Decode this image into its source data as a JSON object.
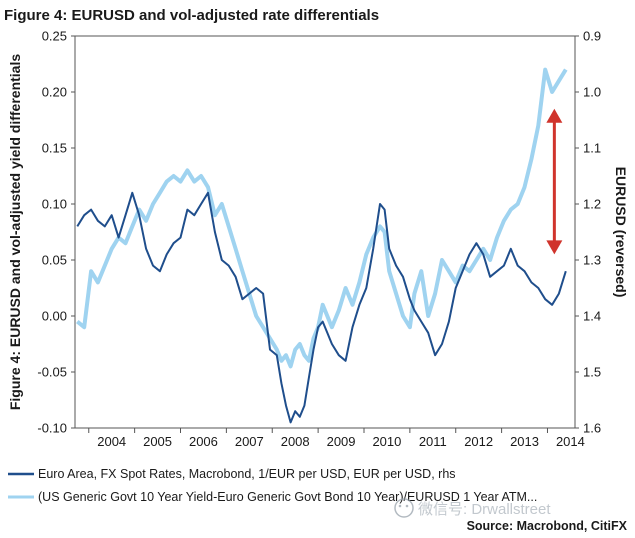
{
  "chart_data": {
    "type": "line",
    "title": "Figure 4: EURUSD and vol-adjusted rate differentials",
    "ylabel_left": "Figure 4: EURUSD and vol-adjusted yield differentials",
    "ylabel_right": "EURUSD (reversed)",
    "ylim_left": [
      -0.1,
      0.25
    ],
    "yticks_left": [
      "0.25",
      "0.20",
      "0.15",
      "0.10",
      "0.05",
      "0.00",
      "-0.05",
      "-0.10"
    ],
    "ylim_right": [
      1.6,
      0.9
    ],
    "yticks_right": [
      "0.9",
      "1.0",
      "1.1",
      "1.2",
      "1.3",
      "1.4",
      "1.5",
      "1.6"
    ],
    "x_categories": [
      "2004",
      "2005",
      "2006",
      "2007",
      "2008",
      "2009",
      "2010",
      "2011",
      "2012",
      "2013",
      "2014"
    ],
    "series": [
      {
        "name": "Euro Area, FX Spot Rates, Macrobond, 1/EUR per USD, EUR per USD, rhs",
        "axis": "right",
        "color": "#1f4e8c",
        "x": [
          2003.75,
          2003.9,
          2004.05,
          2004.2,
          2004.35,
          2004.5,
          2004.65,
          2004.8,
          2004.95,
          2005.1,
          2005.25,
          2005.4,
          2005.55,
          2005.7,
          2005.85,
          2006.0,
          2006.15,
          2006.3,
          2006.45,
          2006.6,
          2006.75,
          2006.9,
          2007.05,
          2007.2,
          2007.35,
          2007.5,
          2007.65,
          2007.8,
          2007.95,
          2008.1,
          2008.2,
          2008.3,
          2008.4,
          2008.5,
          2008.6,
          2008.7,
          2008.8,
          2008.9,
          2009.0,
          2009.1,
          2009.2,
          2009.3,
          2009.45,
          2009.6,
          2009.75,
          2009.9,
          2010.05,
          2010.2,
          2010.35,
          2010.45,
          2010.55,
          2010.7,
          2010.85,
          2011.0,
          2011.1,
          2011.25,
          2011.4,
          2011.55,
          2011.7,
          2011.85,
          2012.0,
          2012.15,
          2012.3,
          2012.45,
          2012.6,
          2012.75,
          2012.9,
          2013.05,
          2013.2,
          2013.35,
          2013.5,
          2013.65,
          2013.8,
          2013.95,
          2014.1,
          2014.25,
          2014.4
        ],
        "values": [
          1.24,
          1.22,
          1.21,
          1.23,
          1.24,
          1.22,
          1.26,
          1.22,
          1.18,
          1.22,
          1.28,
          1.31,
          1.32,
          1.29,
          1.27,
          1.26,
          1.21,
          1.22,
          1.2,
          1.18,
          1.25,
          1.3,
          1.31,
          1.33,
          1.37,
          1.36,
          1.35,
          1.36,
          1.46,
          1.47,
          1.52,
          1.56,
          1.59,
          1.57,
          1.58,
          1.56,
          1.51,
          1.46,
          1.42,
          1.41,
          1.43,
          1.45,
          1.47,
          1.48,
          1.42,
          1.38,
          1.35,
          1.28,
          1.2,
          1.21,
          1.28,
          1.31,
          1.33,
          1.37,
          1.39,
          1.41,
          1.43,
          1.47,
          1.45,
          1.41,
          1.35,
          1.32,
          1.29,
          1.27,
          1.29,
          1.33,
          1.32,
          1.31,
          1.28,
          1.31,
          1.32,
          1.34,
          1.35,
          1.37,
          1.38,
          1.36,
          1.32
        ]
      },
      {
        "name": "(US Generic Govt 10 Year Yield-Euro Generic Govt Bond 10 Year)/EURUSD 1 Year ATM...",
        "axis": "left",
        "color": "#9fd3f0",
        "x": [
          2003.75,
          2003.9,
          2004.05,
          2004.2,
          2004.35,
          2004.5,
          2004.65,
          2004.8,
          2004.95,
          2005.1,
          2005.25,
          2005.4,
          2005.55,
          2005.7,
          2005.85,
          2006.0,
          2006.15,
          2006.3,
          2006.45,
          2006.6,
          2006.75,
          2006.9,
          2007.05,
          2007.2,
          2007.35,
          2007.5,
          2007.65,
          2007.8,
          2007.95,
          2008.1,
          2008.2,
          2008.3,
          2008.4,
          2008.5,
          2008.6,
          2008.7,
          2008.8,
          2008.9,
          2009.0,
          2009.1,
          2009.2,
          2009.3,
          2009.45,
          2009.6,
          2009.75,
          2009.9,
          2010.05,
          2010.2,
          2010.35,
          2010.45,
          2010.55,
          2010.7,
          2010.85,
          2011.0,
          2011.1,
          2011.25,
          2011.4,
          2011.55,
          2011.7,
          2011.85,
          2012.0,
          2012.15,
          2012.3,
          2012.45,
          2012.6,
          2012.75,
          2012.9,
          2013.05,
          2013.2,
          2013.35,
          2013.5,
          2013.65,
          2013.8,
          2013.95,
          2014.1,
          2014.25,
          2014.4
        ],
        "values": [
          -0.005,
          -0.01,
          0.04,
          0.03,
          0.045,
          0.06,
          0.07,
          0.065,
          0.08,
          0.095,
          0.085,
          0.1,
          0.11,
          0.12,
          0.125,
          0.12,
          0.13,
          0.12,
          0.125,
          0.115,
          0.09,
          0.1,
          0.08,
          0.06,
          0.04,
          0.02,
          0.0,
          -0.01,
          -0.02,
          -0.03,
          -0.04,
          -0.035,
          -0.045,
          -0.03,
          -0.025,
          -0.035,
          -0.04,
          -0.02,
          -0.01,
          0.01,
          0.0,
          -0.01,
          0.005,
          0.025,
          0.01,
          0.03,
          0.055,
          0.07,
          0.08,
          0.075,
          0.04,
          0.02,
          0.0,
          -0.01,
          0.02,
          0.04,
          0.0,
          0.02,
          0.05,
          0.04,
          0.03,
          0.045,
          0.04,
          0.05,
          0.06,
          0.05,
          0.07,
          0.085,
          0.095,
          0.1,
          0.115,
          0.14,
          0.17,
          0.22,
          0.2,
          0.21,
          0.22
        ]
      }
    ],
    "annotations": [
      {
        "type": "double-arrow",
        "color": "#d0342c",
        "x": 2014.15,
        "y_left_from": 0.185,
        "y_left_to": 0.055
      }
    ],
    "legend_position": "bottom",
    "source": "Source: Macrobond, CitiFX",
    "watermark": "微信号: Drwallstreet"
  }
}
